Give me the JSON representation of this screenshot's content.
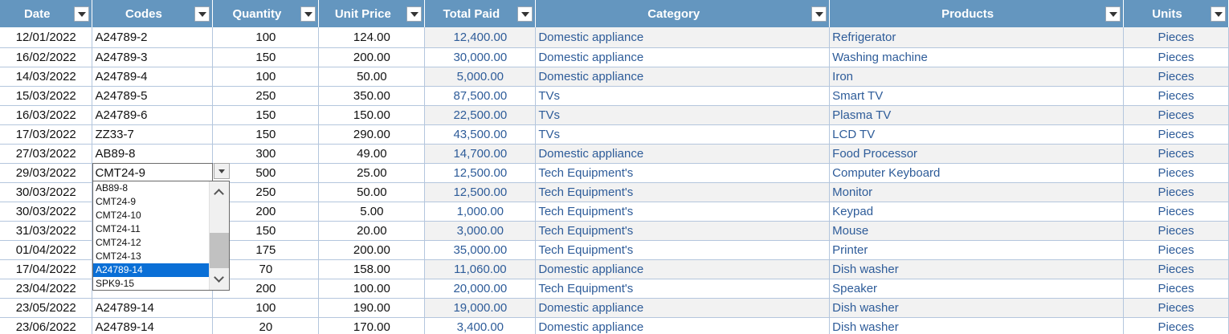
{
  "columns": [
    "Date",
    "Codes",
    "Quantity",
    "Unit Price",
    "Total Paid",
    "Category",
    "Products",
    "Units"
  ],
  "rows": [
    {
      "date": "12/01/2022",
      "code": "A24789-2",
      "qty": "100",
      "price": "124.00",
      "paid": "12,400.00",
      "category": "Domestic appliance",
      "product": "Refrigerator",
      "unit": "Pieces"
    },
    {
      "date": "16/02/2022",
      "code": "A24789-3",
      "qty": "150",
      "price": "200.00",
      "paid": "30,000.00",
      "category": "Domestic appliance",
      "product": "Washing machine",
      "unit": "Pieces"
    },
    {
      "date": "14/03/2022",
      "code": "A24789-4",
      "qty": "100",
      "price": "50.00",
      "paid": "5,000.00",
      "category": "Domestic appliance",
      "product": "Iron",
      "unit": "Pieces"
    },
    {
      "date": "15/03/2022",
      "code": "A24789-5",
      "qty": "250",
      "price": "350.00",
      "paid": "87,500.00",
      "category": "TVs",
      "product": "Smart TV",
      "unit": "Pieces"
    },
    {
      "date": "16/03/2022",
      "code": "A24789-6",
      "qty": "150",
      "price": "150.00",
      "paid": "22,500.00",
      "category": "TVs",
      "product": "Plasma TV",
      "unit": "Pieces"
    },
    {
      "date": "17/03/2022",
      "code": "ZZ33-7",
      "qty": "150",
      "price": "290.00",
      "paid": "43,500.00",
      "category": "TVs",
      "product": "LCD TV",
      "unit": "Pieces"
    },
    {
      "date": "27/03/2022",
      "code": "AB89-8",
      "qty": "300",
      "price": "49.00",
      "paid": "14,700.00",
      "category": "Domestic appliance",
      "product": "Food Processor",
      "unit": "Pieces"
    },
    {
      "date": "29/03/2022",
      "code": "CMT24-9",
      "qty": "500",
      "price": "25.00",
      "paid": "12,500.00",
      "category": "Tech Equipment's",
      "product": "Computer Keyboard",
      "unit": "Pieces"
    },
    {
      "date": "30/03/2022",
      "code": "",
      "qty": "250",
      "price": "50.00",
      "paid": "12,500.00",
      "category": "Tech Equipment's",
      "product": "Monitor",
      "unit": "Pieces"
    },
    {
      "date": "30/03/2022",
      "code": "",
      "qty": "200",
      "price": "5.00",
      "paid": "1,000.00",
      "category": "Tech Equipment's",
      "product": "Keypad",
      "unit": "Pieces"
    },
    {
      "date": "31/03/2022",
      "code": "",
      "qty": "150",
      "price": "20.00",
      "paid": "3,000.00",
      "category": "Tech Equipment's",
      "product": "Mouse",
      "unit": "Pieces"
    },
    {
      "date": "01/04/2022",
      "code": "",
      "qty": "175",
      "price": "200.00",
      "paid": "35,000.00",
      "category": "Tech Equipment's",
      "product": "Printer",
      "unit": "Pieces"
    },
    {
      "date": "17/04/2022",
      "code": "",
      "qty": "70",
      "price": "158.00",
      "paid": "11,060.00",
      "category": "Domestic appliance",
      "product": "Dish washer",
      "unit": "Pieces"
    },
    {
      "date": "23/04/2022",
      "code": "",
      "qty": "200",
      "price": "100.00",
      "paid": "20,000.00",
      "category": "Tech Equipment's",
      "product": "Speaker",
      "unit": "Pieces"
    },
    {
      "date": "23/05/2022",
      "code": "A24789-14",
      "qty": "100",
      "price": "190.00",
      "paid": "19,000.00",
      "category": "Domestic appliance",
      "product": "Dish washer",
      "unit": "Pieces"
    },
    {
      "date": "23/06/2022",
      "code": "A24789-14",
      "qty": "20",
      "price": "170.00",
      "paid": "3,400.00",
      "category": "Domestic appliance",
      "product": "Dish washer",
      "unit": "Pieces"
    }
  ],
  "dropdown": {
    "options": [
      "AB89-8",
      "CMT24-9",
      "CMT24-10",
      "CMT24-11",
      "CMT24-12",
      "CMT24-13",
      "A24789-14",
      "SPK9-15"
    ],
    "selected": "A24789-14"
  }
}
